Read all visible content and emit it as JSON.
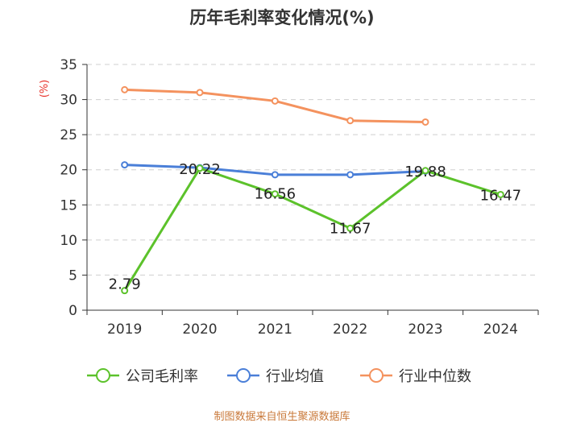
{
  "chart_data": {
    "type": "line",
    "title": "历年毛利率变化情况(%)",
    "ylabel": "(%)",
    "xlabel": "",
    "categories": [
      "2019",
      "2020",
      "2021",
      "2022",
      "2023",
      "2024"
    ],
    "ylim": [
      0,
      35
    ],
    "yticks": [
      0,
      5,
      10,
      15,
      20,
      25,
      30,
      35
    ],
    "legend_position": "bottom",
    "series": [
      {
        "name": "公司毛利率",
        "color": "#5cc22b",
        "values": [
          2.79,
          20.22,
          16.56,
          11.67,
          19.88,
          16.47
        ],
        "labels": [
          "2.79",
          "20.22",
          "16.56",
          "11.67",
          "19.88",
          "16.47"
        ]
      },
      {
        "name": "行业均值",
        "color": "#4a7fd8",
        "values": [
          20.7,
          20.3,
          19.3,
          19.3,
          19.8,
          null
        ]
      },
      {
        "name": "行业中位数",
        "color": "#f4925e",
        "values": [
          31.4,
          31.0,
          29.8,
          27.0,
          26.8,
          null
        ]
      }
    ]
  },
  "source": "制图数据来自恒生聚源数据库"
}
